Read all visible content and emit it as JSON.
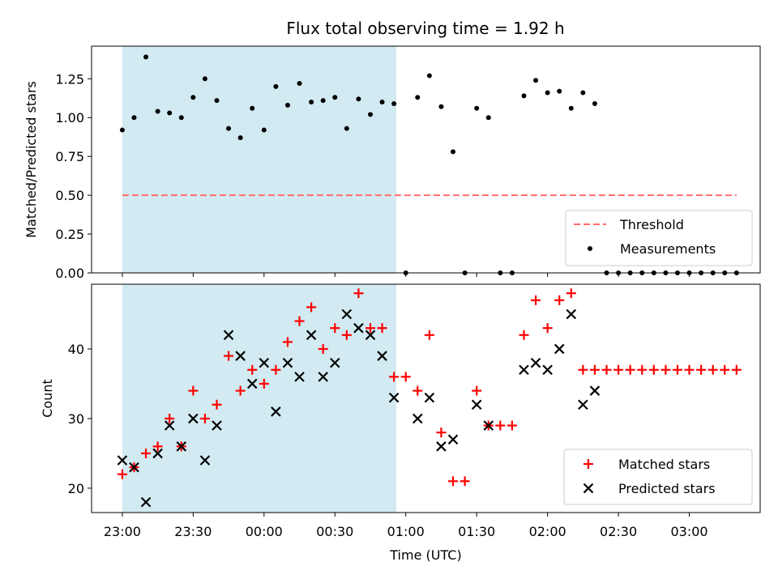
{
  "figure": {
    "title": "Flux total observing time = 1.92 h",
    "xlabel": "Time (UTC)"
  },
  "colors": {
    "shade": "#add8e6",
    "threshold": "#ff6b6b",
    "matched": "#ff0000",
    "predicted": "#000000",
    "measurement": "#000000"
  },
  "chart_data": [
    {
      "type": "scatter",
      "ylabel": "Matched/Predicted stars",
      "xlim_minutes_since_23_00": [
        -13,
        270
      ],
      "ylim": [
        0,
        1.46
      ],
      "yticks": [
        "0.00",
        "0.25",
        "0.50",
        "0.75",
        "1.00",
        "1.25"
      ],
      "ytick_values": [
        0,
        0.25,
        0.5,
        0.75,
        1.0,
        1.25
      ],
      "shaded_span_minutes": [
        0,
        116
      ],
      "threshold": {
        "name": "Threshold",
        "y": 0.5,
        "x_range_minutes": [
          0,
          260
        ]
      },
      "legend": [
        "Threshold",
        "Measurements"
      ],
      "legend_position": "lower-right",
      "series": [
        {
          "name": "Measurements",
          "x_minutes": [
            0,
            5,
            10,
            15,
            20,
            25,
            30,
            35,
            40,
            45,
            50,
            55,
            60,
            65,
            70,
            75,
            80,
            85,
            90,
            95,
            100,
            105,
            110,
            115,
            120,
            125,
            130,
            135,
            140,
            145,
            150,
            155,
            160,
            165,
            170,
            175,
            180,
            185,
            190,
            195,
            200,
            205,
            210,
            215,
            220,
            225,
            230,
            235,
            240,
            245,
            250,
            255,
            260
          ],
          "y": [
            0.92,
            1.0,
            1.39,
            1.04,
            1.03,
            1.0,
            1.13,
            1.25,
            1.11,
            0.93,
            0.87,
            1.06,
            0.92,
            1.2,
            1.08,
            1.22,
            1.1,
            1.11,
            1.13,
            0.93,
            1.12,
            1.02,
            1.1,
            1.09,
            0.0,
            1.13,
            1.27,
            1.07,
            0.78,
            0.0,
            1.06,
            1.0,
            0.0,
            0.0,
            1.14,
            1.24,
            1.16,
            1.17,
            1.06,
            1.16,
            1.09,
            0.0,
            0.0,
            0.0,
            0.0,
            0.0,
            0.0,
            0.0,
            0.0,
            0.0,
            0.0,
            0.0,
            0.0
          ]
        }
      ]
    },
    {
      "type": "scatter",
      "ylabel": "Count",
      "xlim_minutes_since_23_00": [
        -13,
        270
      ],
      "ylim": [
        16.5,
        49.3
      ],
      "yticks": [
        "20",
        "30",
        "40"
      ],
      "ytick_values": [
        20,
        30,
        40
      ],
      "xticks": [
        "23:00",
        "23:30",
        "00:00",
        "00:30",
        "01:00",
        "01:30",
        "02:00",
        "02:30",
        "03:00"
      ],
      "xtick_minutes": [
        0,
        30,
        60,
        90,
        120,
        150,
        180,
        210,
        240
      ],
      "shaded_span_minutes": [
        0,
        116
      ],
      "legend": [
        "Matched stars",
        "Predicted stars"
      ],
      "legend_position": "lower-right",
      "series": [
        {
          "name": "Matched stars",
          "marker": "+",
          "x_minutes": [
            0,
            5,
            10,
            15,
            20,
            25,
            30,
            35,
            40,
            45,
            50,
            55,
            60,
            65,
            70,
            75,
            80,
            85,
            90,
            95,
            100,
            105,
            110,
            115,
            120,
            125,
            130,
            135,
            140,
            145,
            150,
            155,
            160,
            165,
            170,
            175,
            180,
            185,
            190,
            195,
            200,
            205,
            210,
            215,
            220,
            225,
            230,
            235,
            240,
            245,
            250,
            255,
            260
          ],
          "y": [
            22,
            23,
            25,
            26,
            30,
            26,
            34,
            30,
            32,
            39,
            34,
            37,
            35,
            37,
            41,
            44,
            46,
            40,
            43,
            42,
            48,
            43,
            43,
            36,
            36,
            34,
            42,
            28,
            21,
            21,
            34,
            29,
            29,
            29,
            42,
            47,
            43,
            47,
            48,
            37,
            37,
            37,
            37,
            37,
            37,
            37,
            37,
            37,
            37,
            37,
            37,
            37,
            37
          ]
        },
        {
          "name": "Predicted stars",
          "marker": "x",
          "x_minutes": [
            0,
            5,
            10,
            15,
            20,
            25,
            30,
            35,
            40,
            45,
            50,
            55,
            60,
            65,
            70,
            75,
            80,
            85,
            90,
            95,
            100,
            105,
            110,
            115,
            125,
            130,
            135,
            140,
            150,
            155,
            170,
            175,
            180,
            185,
            190,
            195,
            200
          ],
          "y": [
            24,
            23,
            18,
            25,
            29,
            26,
            30,
            24,
            29,
            42,
            39,
            35,
            38,
            31,
            38,
            36,
            42,
            36,
            38,
            45,
            43,
            42,
            39,
            33,
            30,
            33,
            26,
            27,
            32,
            29,
            37,
            38,
            37,
            40,
            45,
            32,
            34
          ]
        }
      ]
    }
  ]
}
